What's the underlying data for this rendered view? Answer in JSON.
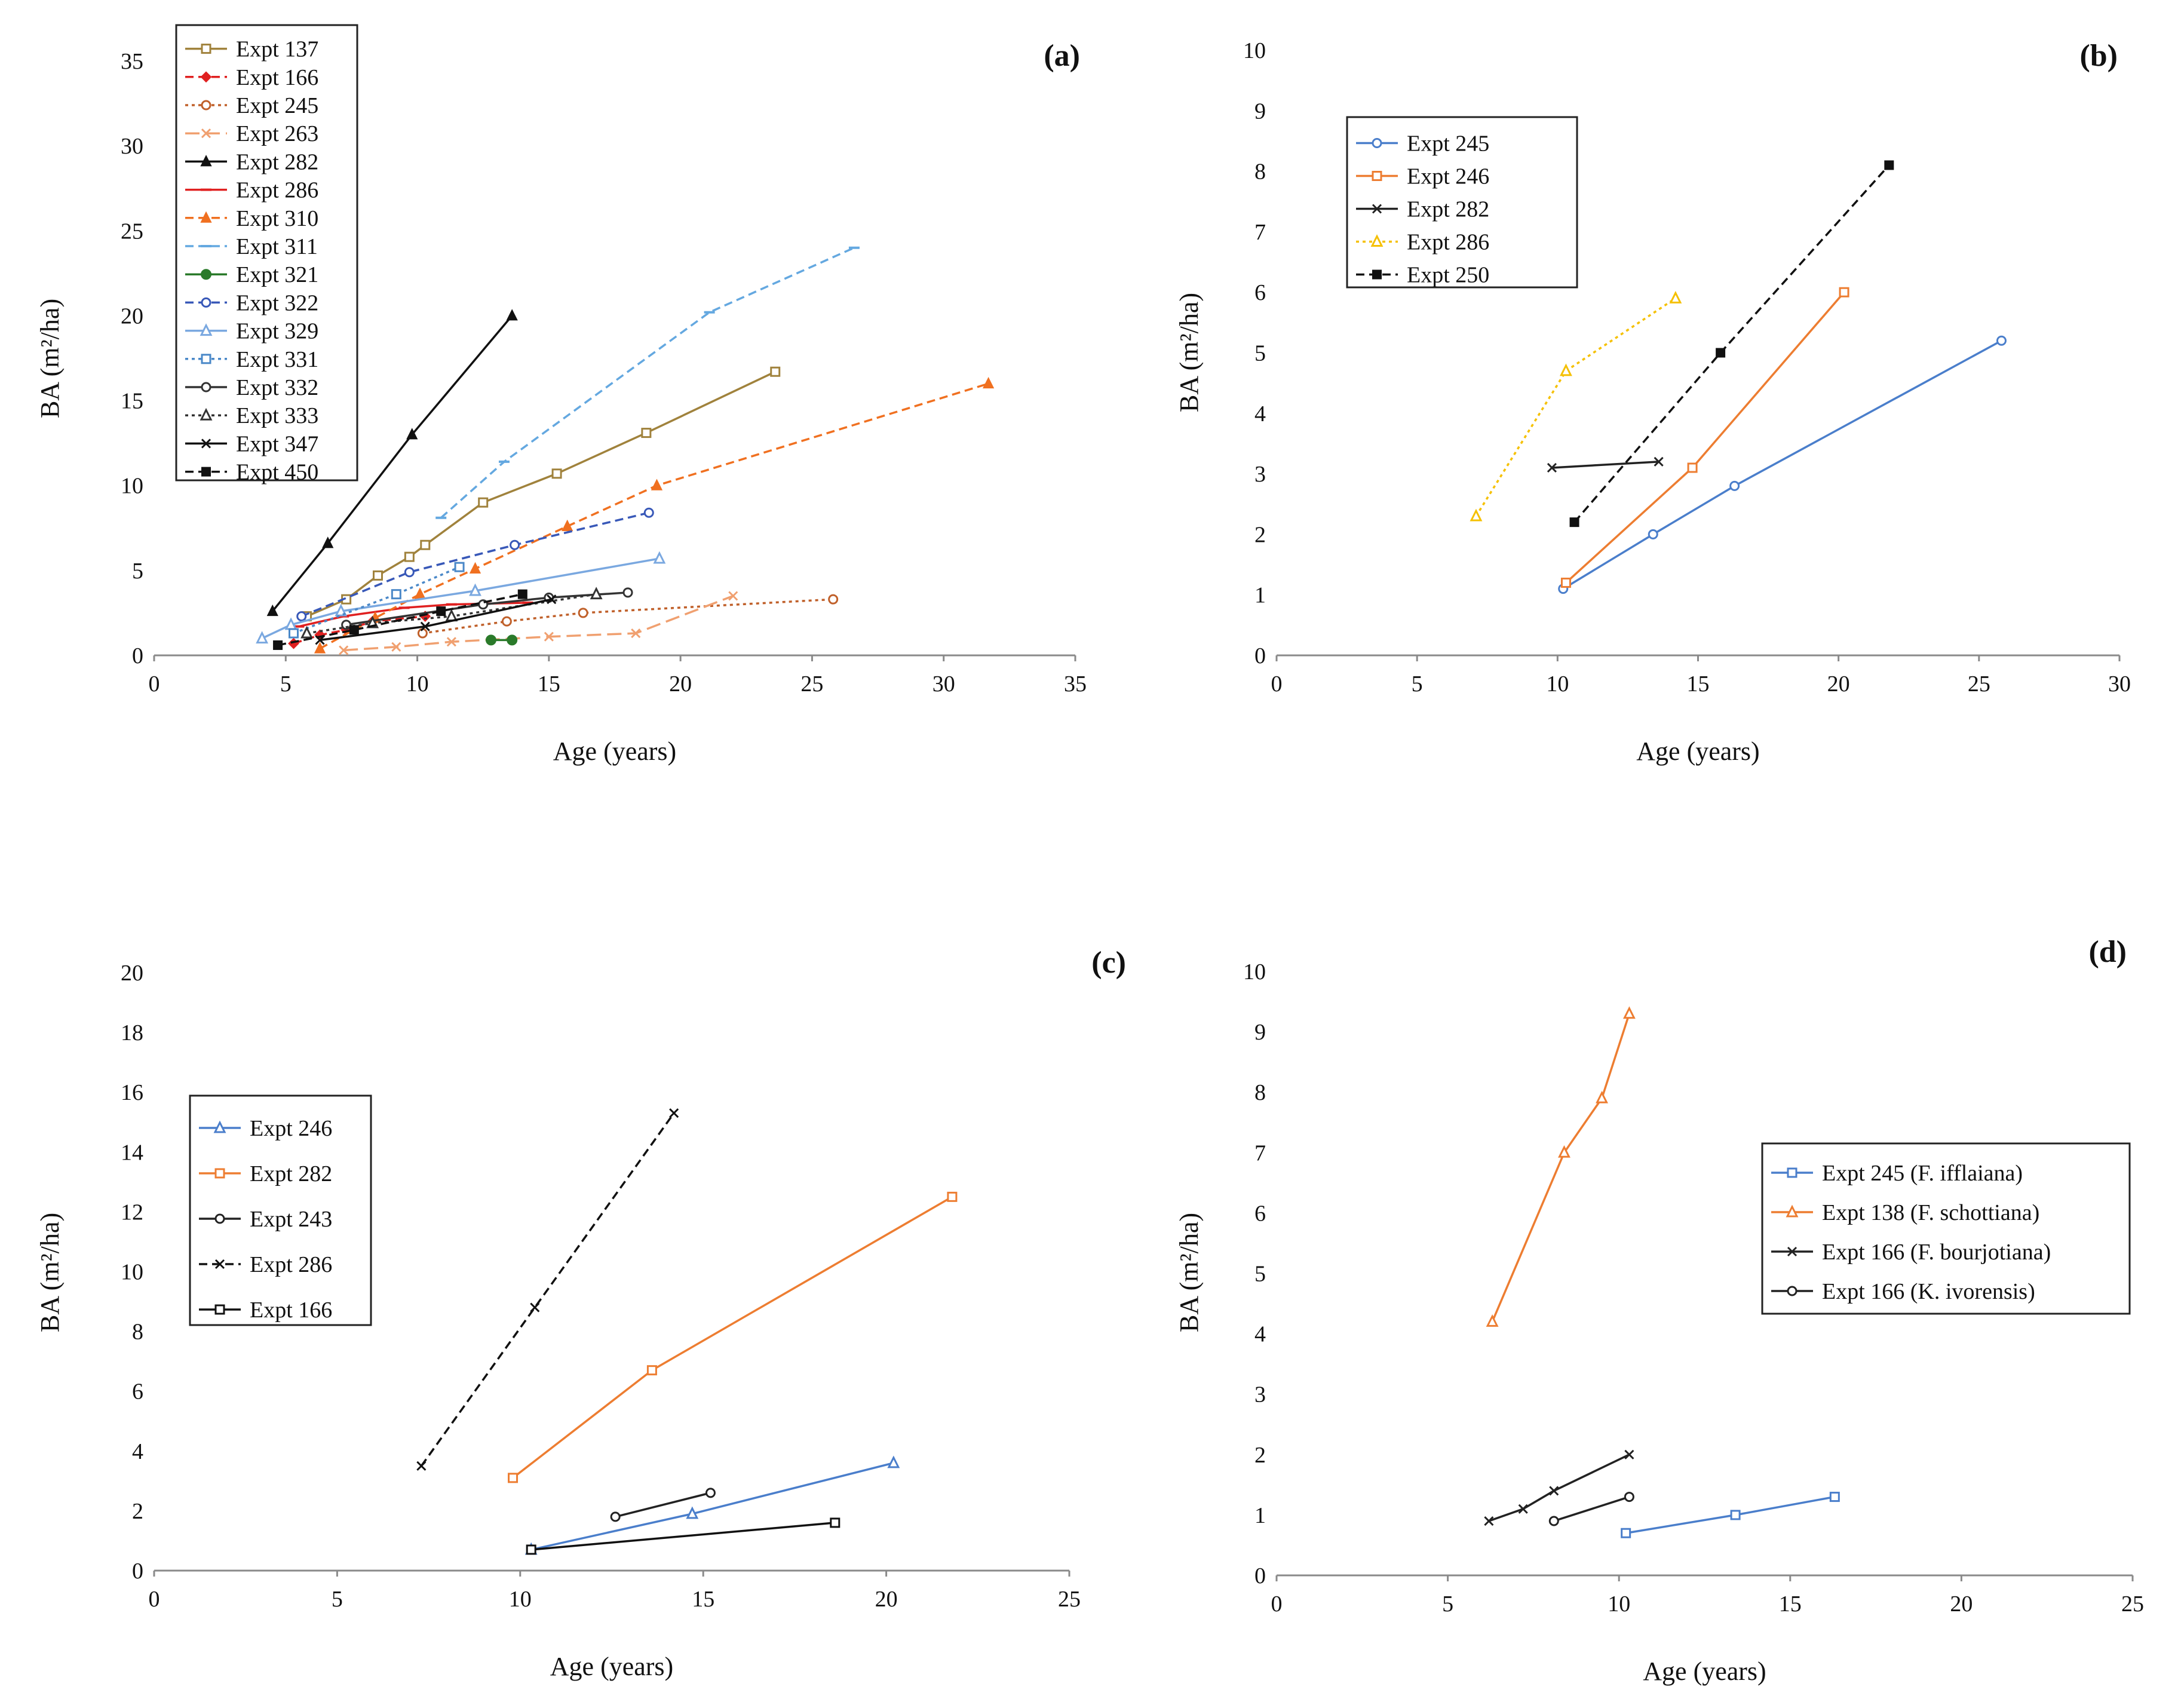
{
  "chart_data": [
    {
      "panel_label": "(a)",
      "type": "line",
      "xlabel": "Age (years)",
      "ylabel": "BA (m²/ha)",
      "xlim": [
        0,
        35
      ],
      "ylim": [
        0,
        35
      ],
      "xticks": [
        0,
        5,
        10,
        15,
        20,
        25,
        30,
        35
      ],
      "yticks": [
        0,
        5,
        10,
        15,
        20,
        25,
        30,
        35
      ],
      "grid": false,
      "legend_position": "top-left",
      "series": [
        {
          "name": "Expt 137",
          "color": "#a0823c",
          "dash": "solid",
          "marker": "square-open",
          "x": [
            5.8,
            7.3,
            8.5,
            9.7,
            10.3,
            12.5,
            15.3,
            18.7,
            23.6
          ],
          "y": [
            2.3,
            3.3,
            4.7,
            5.8,
            6.5,
            9.0,
            10.7,
            13.1,
            16.7
          ]
        },
        {
          "name": "Expt 166",
          "color": "#e02020",
          "dash": "dash",
          "marker": "diamond",
          "x": [
            5.3,
            6.3,
            7.3,
            8.3,
            10.3
          ],
          "y": [
            0.7,
            1.2,
            1.5,
            2.0,
            2.3
          ]
        },
        {
          "name": "Expt 245",
          "color": "#c0602a",
          "dash": "dot",
          "marker": "circle-open",
          "x": [
            10.2,
            13.4,
            16.3,
            25.8
          ],
          "y": [
            1.3,
            2.0,
            2.5,
            3.3
          ]
        },
        {
          "name": "Expt 263",
          "color": "#f0a070",
          "dash": "longdash",
          "marker": "x",
          "x": [
            7.2,
            9.2,
            11.3,
            15.0,
            18.3,
            22.0
          ],
          "y": [
            0.3,
            0.5,
            0.8,
            1.1,
            1.3,
            3.5
          ]
        },
        {
          "name": "Expt 282",
          "color": "#111111",
          "dash": "solid",
          "marker": "triangle",
          "x": [
            4.5,
            6.6,
            9.8,
            13.6
          ],
          "y": [
            2.6,
            6.6,
            13.0,
            20.0
          ]
        },
        {
          "name": "Expt 286",
          "color": "#e02020",
          "dash": "solid",
          "marker": "dash",
          "x": [
            5.5,
            7.2,
            9.5,
            11.3,
            14.2
          ],
          "y": [
            1.7,
            2.3,
            2.8,
            3.0,
            3.1
          ]
        },
        {
          "name": "Expt 310",
          "color": "#f07020",
          "dash": "dash",
          "marker": "triangle",
          "x": [
            6.3,
            8.4,
            10.1,
            12.2,
            15.7,
            19.1,
            31.7
          ],
          "y": [
            0.4,
            2.2,
            3.6,
            5.1,
            7.6,
            10.0,
            16.0
          ]
        },
        {
          "name": "Expt 311",
          "color": "#64a8e0",
          "dash": "dash",
          "marker": "dash",
          "x": [
            10.9,
            13.3,
            21.1,
            26.6
          ],
          "y": [
            8.1,
            11.4,
            20.2,
            24.0
          ]
        },
        {
          "name": "Expt 321",
          "color": "#2a7a2a",
          "dash": "solid",
          "marker": "circle",
          "x": [
            12.8,
            13.6
          ],
          "y": [
            0.9,
            0.9
          ]
        },
        {
          "name": "Expt 322",
          "color": "#3858b8",
          "dash": "dash",
          "marker": "circle-open",
          "x": [
            5.6,
            9.7,
            13.7,
            18.8
          ],
          "y": [
            2.3,
            4.9,
            6.5,
            8.4
          ]
        },
        {
          "name": "Expt 329",
          "color": "#7aa8e0",
          "dash": "solid",
          "marker": "triangle-open",
          "x": [
            4.1,
            5.2,
            7.1,
            12.2,
            19.2
          ],
          "y": [
            1.0,
            1.8,
            2.6,
            3.8,
            5.7
          ]
        },
        {
          "name": "Expt 331",
          "color": "#4a88c8",
          "dash": "dot",
          "marker": "square-open",
          "x": [
            5.3,
            9.2,
            11.6
          ],
          "y": [
            1.3,
            3.6,
            5.2
          ]
        },
        {
          "name": "Expt 332",
          "color": "#333333",
          "dash": "solid",
          "marker": "circle-open",
          "x": [
            7.3,
            12.5,
            15.0,
            18.0
          ],
          "y": [
            1.8,
            3.0,
            3.4,
            3.7
          ]
        },
        {
          "name": "Expt 333",
          "color": "#333333",
          "dash": "dot",
          "marker": "triangle-open",
          "x": [
            5.8,
            8.3,
            11.3,
            16.8
          ],
          "y": [
            1.3,
            1.9,
            2.3,
            3.6
          ]
        },
        {
          "name": "Expt 347",
          "color": "#111111",
          "dash": "solid",
          "marker": "x",
          "x": [
            6.3,
            10.3,
            15.1
          ],
          "y": [
            0.9,
            1.7,
            3.3
          ]
        },
        {
          "name": "Expt 450",
          "color": "#111111",
          "dash": "dash",
          "marker": "square",
          "x": [
            4.7,
            7.6,
            10.9,
            14.0
          ],
          "y": [
            0.6,
            1.5,
            2.6,
            3.6
          ]
        }
      ]
    },
    {
      "panel_label": "(b)",
      "type": "line",
      "xlabel": "Age (years)",
      "ylabel": "BA (m²/ha)",
      "xlim": [
        0,
        30
      ],
      "ylim": [
        0,
        10
      ],
      "xticks": [
        0,
        5,
        10,
        15,
        20,
        25,
        30
      ],
      "yticks": [
        0,
        1,
        2,
        3,
        4,
        5,
        6,
        7,
        8,
        9,
        10
      ],
      "grid": false,
      "legend_position": "top-left",
      "series": [
        {
          "name": "Expt 245",
          "color": "#4a7ecb",
          "dash": "solid",
          "marker": "circle-open",
          "x": [
            10.2,
            13.4,
            16.3,
            25.8
          ],
          "y": [
            1.1,
            2.0,
            2.8,
            5.2
          ]
        },
        {
          "name": "Expt 246",
          "color": "#ed7d31",
          "dash": "solid",
          "marker": "square-open",
          "x": [
            10.3,
            14.8,
            20.2
          ],
          "y": [
            1.2,
            3.1,
            6.0
          ]
        },
        {
          "name": "Expt 282",
          "color": "#222222",
          "dash": "solid",
          "marker": "x",
          "x": [
            9.8,
            13.6
          ],
          "y": [
            3.1,
            3.2
          ]
        },
        {
          "name": "Expt 286",
          "color": "#f5c000",
          "dash": "dot",
          "marker": "triangle-open",
          "x": [
            7.1,
            10.3,
            14.2
          ],
          "y": [
            2.3,
            4.7,
            5.9
          ]
        },
        {
          "name": "Expt 250",
          "color": "#111111",
          "dash": "dash",
          "marker": "square",
          "x": [
            10.6,
            15.8,
            21.8
          ],
          "y": [
            2.2,
            5.0,
            8.1
          ]
        }
      ]
    },
    {
      "panel_label": "(c)",
      "type": "line",
      "xlabel": "Age (years)",
      "ylabel": "BA (m²/ha)",
      "xlim": [
        0,
        25
      ],
      "ylim": [
        0,
        20
      ],
      "xticks": [
        0,
        5,
        10,
        15,
        20,
        25
      ],
      "yticks": [
        0,
        2,
        4,
        6,
        8,
        10,
        12,
        14,
        16,
        18,
        20
      ],
      "grid": false,
      "legend_position": "middle-left",
      "series": [
        {
          "name": "Expt 246",
          "color": "#4a7ecb",
          "dash": "solid",
          "marker": "triangle-open",
          "x": [
            10.3,
            14.7,
            20.2
          ],
          "y": [
            0.7,
            1.9,
            3.6
          ]
        },
        {
          "name": "Expt 282",
          "color": "#ed7d31",
          "dash": "solid",
          "marker": "square-open",
          "x": [
            9.8,
            13.6,
            21.8
          ],
          "y": [
            3.1,
            6.7,
            12.5
          ]
        },
        {
          "name": "Expt 243",
          "color": "#222222",
          "dash": "solid",
          "marker": "circle-open",
          "x": [
            12.6,
            15.2
          ],
          "y": [
            1.8,
            2.6
          ]
        },
        {
          "name": "Expt 286",
          "color": "#111111",
          "dash": "dash",
          "marker": "x",
          "x": [
            7.3,
            10.4,
            14.2
          ],
          "y": [
            3.5,
            8.8,
            15.3
          ]
        },
        {
          "name": "Expt 166",
          "color": "#111111",
          "dash": "solid",
          "marker": "square-open",
          "x": [
            10.3,
            18.6
          ],
          "y": [
            0.7,
            1.6
          ]
        }
      ]
    },
    {
      "panel_label": "(d)",
      "type": "line",
      "xlabel": "Age (years)",
      "ylabel": "BA (m²/ha)",
      "xlim": [
        0,
        25
      ],
      "ylim": [
        0,
        10
      ],
      "xticks": [
        0,
        5,
        10,
        15,
        20,
        25
      ],
      "yticks": [
        0,
        1,
        2,
        3,
        4,
        5,
        6,
        7,
        8,
        9,
        10
      ],
      "grid": false,
      "legend_position": "right",
      "series": [
        {
          "name": "Expt 245 (F. ifflaiana)",
          "color": "#4a7ecb",
          "dash": "solid",
          "marker": "square-open",
          "x": [
            10.2,
            13.4,
            16.3
          ],
          "y": [
            0.7,
            1.0,
            1.3
          ]
        },
        {
          "name": "Expt 138 (F. schottiana)",
          "color": "#ed7d31",
          "dash": "solid",
          "marker": "triangle-open",
          "x": [
            6.3,
            8.4,
            9.5,
            10.3
          ],
          "y": [
            4.2,
            7.0,
            7.9,
            9.3
          ]
        },
        {
          "name": "Expt 166 (F. bourjotiana)",
          "color": "#222222",
          "dash": "solid",
          "marker": "x",
          "x": [
            6.2,
            7.2,
            8.1,
            10.3
          ],
          "y": [
            0.9,
            1.1,
            1.4,
            2.0
          ]
        },
        {
          "name": "Expt 166 (K. ivorensis)",
          "color": "#222222",
          "dash": "solid",
          "marker": "circle-open",
          "x": [
            8.1,
            10.3
          ],
          "y": [
            0.9,
            1.3
          ]
        }
      ]
    }
  ]
}
